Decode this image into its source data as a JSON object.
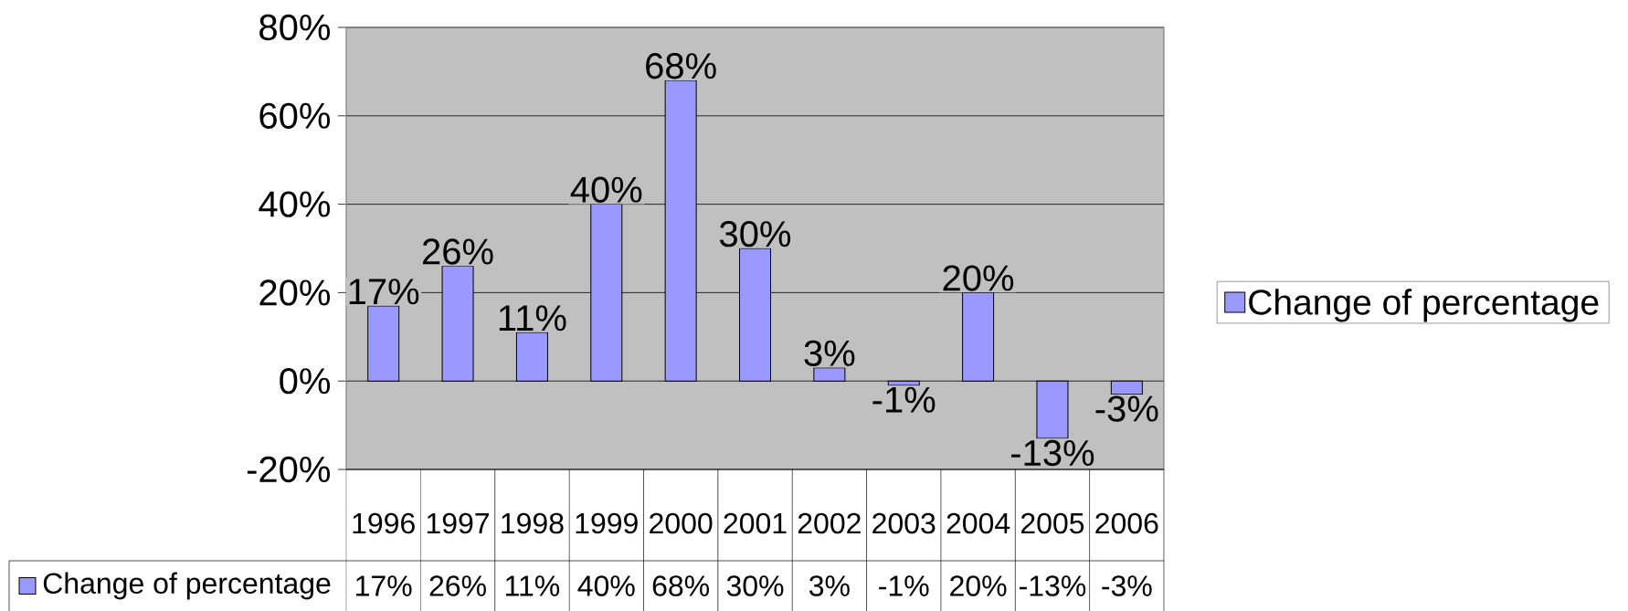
{
  "chart_data": {
    "type": "bar",
    "categories": [
      "1996",
      "1997",
      "1998",
      "1999",
      "2000",
      "2001",
      "2002",
      "2003",
      "2004",
      "2005",
      "2006"
    ],
    "series": [
      {
        "name": "Change of percentage",
        "color": "#9999ff",
        "values": [
          17,
          26,
          11,
          40,
          68,
          30,
          3,
          -1,
          20,
          -13,
          -3
        ],
        "value_labels": [
          "17%",
          "26%",
          "11%",
          "40%",
          "68%",
          "30%",
          "3%",
          "-1%",
          "20%",
          "-13%",
          "-3%"
        ]
      }
    ],
    "ylim": [
      -20,
      80
    ],
    "yticks": [
      {
        "value": -20,
        "label": "-20%"
      },
      {
        "value": 0,
        "label": "0%"
      },
      {
        "value": 20,
        "label": "20%"
      },
      {
        "value": 40,
        "label": "40%"
      },
      {
        "value": 60,
        "label": "60%"
      },
      {
        "value": 80,
        "label": "80%"
      }
    ],
    "grid": "y",
    "legend": "right"
  }
}
